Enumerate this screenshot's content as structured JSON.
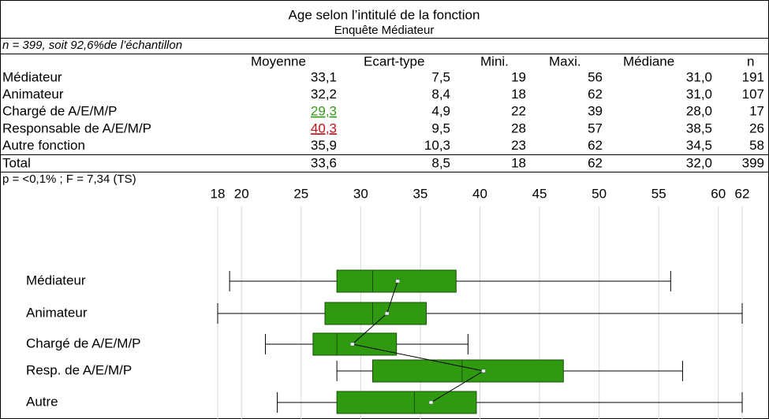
{
  "title": "Age selon l’intitulé de la fonction",
  "subtitle": "Enquête Médiateur",
  "note": "n = 399, soit 92,6%de l’échantillon",
  "table": {
    "header": [
      "Moyenne",
      "Ecart-type",
      "Mini.",
      "Maxi.",
      "Médiane",
      "n"
    ],
    "rows": [
      [
        "Médiateur",
        "33,1",
        "7,5",
        "19",
        "56",
        "31,0",
        "191"
      ],
      [
        "Animateur",
        "32,2",
        "8,4",
        "18",
        "62",
        "31,0",
        "107"
      ],
      [
        "Chargé de A/E/M/P",
        "29,3",
        "4,9",
        "22",
        "39",
        "28,0",
        "17"
      ],
      [
        "Responsable de A/E/M/P",
        "40,3",
        "9,5",
        "28",
        "57",
        "38,5",
        "26"
      ],
      [
        "Autre fonction",
        "35,9",
        "10,3",
        "23",
        "62",
        "34,5",
        "58"
      ]
    ],
    "mean_colors": [
      null,
      null,
      "#3a9a1e",
      "#c0141c",
      null
    ],
    "total": [
      "Total",
      "33,6",
      "8,5",
      "18",
      "62",
      "32,0",
      "399"
    ]
  },
  "stat_note": "p = <0,1% ; F = 7,34 (TS)",
  "chart_data": {
    "type": "box",
    "categories": [
      "Médiateur",
      "Animateur",
      "Chargé de A/E/M/P",
      "Resp. de A/E/M/P",
      "Autre"
    ],
    "boxes": [
      {
        "min": 19,
        "q1": 28,
        "median": 31,
        "q3": 38,
        "max": 56,
        "mean": 33.1
      },
      {
        "min": 18,
        "q1": 27,
        "median": 31,
        "q3": 35.5,
        "max": 62,
        "mean": 32.2
      },
      {
        "min": 22,
        "q1": 26,
        "median": 28,
        "q3": 33,
        "max": 39,
        "mean": 29.3
      },
      {
        "min": 28,
        "q1": 31,
        "median": 38.5,
        "q3": 47,
        "max": 57,
        "mean": 40.3
      },
      {
        "min": 23,
        "q1": 28,
        "median": 34.5,
        "q3": 39.7,
        "max": 62,
        "mean": 35.9
      }
    ],
    "color": "#2f9a10",
    "xlim": [
      18,
      62
    ],
    "xticks": [
      18,
      20,
      25,
      30,
      35,
      40,
      45,
      50,
      55,
      60,
      62
    ],
    "grid": true
  }
}
